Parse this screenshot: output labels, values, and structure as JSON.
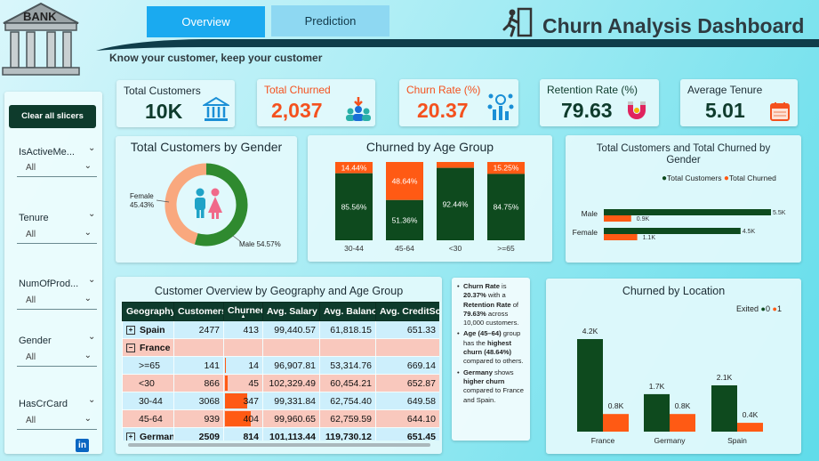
{
  "header": {
    "bank_label": "BANK",
    "tabs": [
      {
        "label": "Overview"
      },
      {
        "label": "Prediction"
      }
    ],
    "title": "Churn Analysis Dashboard",
    "subtitle": "Know your customer, keep your customer"
  },
  "sidebar": {
    "clear_label": "Clear all slicers",
    "slicers": [
      {
        "label": "IsActiveMe...",
        "value": "All"
      },
      {
        "label": "Tenure",
        "value": "All"
      },
      {
        "label": "NumOfProd...",
        "value": "All"
      },
      {
        "label": "Gender",
        "value": "All"
      },
      {
        "label": "HasCrCard",
        "value": "All"
      }
    ],
    "linkedin": "in"
  },
  "kpis": {
    "total_customers": {
      "label": "Total Customers",
      "value": "10K"
    },
    "total_churned": {
      "label": "Total Churned",
      "value": "2,037"
    },
    "churn_rate": {
      "label": "Churn Rate (%)",
      "value": "20.37"
    },
    "retention_rate": {
      "label": "Retention Rate (%)",
      "value": "79.63"
    },
    "average_tenure": {
      "label": "Average Tenure",
      "value": "5.01"
    }
  },
  "colors": {
    "dark_green": "#0e4a1e",
    "orange": "#ff5a14",
    "green_ring": "#2f8a2f",
    "peach_ring": "#f9a87e"
  },
  "chart_data": [
    {
      "type": "pie",
      "title": "Total Customers by Gender",
      "slices": [
        {
          "name": "Female",
          "value": 45.43,
          "label": "45.43%"
        },
        {
          "name": "Male",
          "value": 54.57,
          "label": "54.57%"
        }
      ],
      "labels": {
        "female": "Female",
        "female_pct": "45.43%",
        "male": "Male 54.57%"
      }
    },
    {
      "type": "bar",
      "stacked": true,
      "title": "Churned by Age Group",
      "categories": [
        "30-44",
        "45-64",
        "<30",
        ">=65"
      ],
      "series": [
        {
          "name": "Churned",
          "values": [
            14.44,
            48.64,
            7.56,
            15.25
          ],
          "labels": [
            "14.44%",
            "48.64%",
            "",
            "15.25%"
          ]
        },
        {
          "name": "Not churned",
          "values": [
            85.56,
            51.36,
            92.44,
            84.75
          ],
          "labels": [
            "85.56%",
            "51.36%",
            "92.44%",
            "84.75%"
          ]
        }
      ]
    },
    {
      "type": "bar",
      "orientation": "horizontal",
      "title": "Total Customers and Total Churned by Gender",
      "categories": [
        "Male",
        "Female"
      ],
      "legend": [
        "Total Customers",
        "Total Churned"
      ],
      "series": [
        {
          "name": "Total Customers",
          "values": [
            5.5,
            4.5
          ],
          "labels": [
            "5.5K",
            "4.5K"
          ]
        },
        {
          "name": "Total Churned",
          "values": [
            0.9,
            1.1
          ],
          "labels": [
            "0.9K",
            "1.1K"
          ]
        }
      ],
      "xlim": [
        0,
        5.5
      ]
    },
    {
      "type": "bar",
      "title": "Churned by Location",
      "categories": [
        "France",
        "Germany",
        "Spain"
      ],
      "legend_title": "Exited",
      "legend": [
        "0",
        "1"
      ],
      "series": [
        {
          "name": "0",
          "values": [
            4.2,
            1.7,
            2.1
          ],
          "labels": [
            "4.2K",
            "1.7K",
            "2.1K"
          ]
        },
        {
          "name": "1",
          "values": [
            0.8,
            0.8,
            0.4
          ],
          "labels": [
            "0.8K",
            "0.8K",
            "0.4K"
          ]
        }
      ],
      "ylim": [
        0,
        4.2
      ]
    }
  ],
  "geo_table": {
    "title": "Customer Overview by Geography and Age Group",
    "headers": [
      "Geography",
      "Customers",
      "Churned",
      "Avg. Salary",
      "Avg. Balance",
      "Avg. CreditScore"
    ],
    "rows": [
      {
        "name": "Spain",
        "toggle": "+",
        "customers": "2477",
        "churned": "413",
        "salary": "99,440.57",
        "balance": "61,818.15",
        "credit": "651.33",
        "churned_val": 413
      },
      {
        "name": "France",
        "toggle": "−",
        "customers": "",
        "churned": "",
        "salary": "",
        "balance": "",
        "credit": "",
        "churned_val": 0
      },
      {
        "name": ">=65",
        "toggle": "",
        "customers": "141",
        "churned": "14",
        "salary": "96,907.81",
        "balance": "53,314.76",
        "credit": "669.14",
        "churned_val": 14
      },
      {
        "name": "<30",
        "toggle": "",
        "customers": "866",
        "churned": "45",
        "salary": "102,329.49",
        "balance": "60,454.21",
        "credit": "652.87",
        "churned_val": 45
      },
      {
        "name": "30-44",
        "toggle": "",
        "customers": "3068",
        "churned": "347",
        "salary": "99,331.84",
        "balance": "62,754.40",
        "credit": "649.58",
        "churned_val": 347
      },
      {
        "name": "45-64",
        "toggle": "",
        "customers": "939",
        "churned": "404",
        "salary": "99,960.65",
        "balance": "62,759.59",
        "credit": "644.10",
        "churned_val": 404
      },
      {
        "name": "German",
        "toggle": "+",
        "customers": "2509",
        "churned": "814",
        "salary": "101,113.44",
        "balance": "119,730.12",
        "credit": "651.45",
        "churned_val": 814
      }
    ]
  },
  "insights": [
    {
      "parts": [
        {
          "b": "Churn Rate"
        },
        {
          "t": " is "
        },
        {
          "b": "20.37%"
        },
        {
          "t": " with a "
        },
        {
          "b": "Retention Rate"
        },
        {
          "t": " of "
        },
        {
          "b": "79.63%"
        },
        {
          "t": " across 10,000 customers."
        }
      ]
    },
    {
      "parts": [
        {
          "b": "Age (45–64)"
        },
        {
          "t": " group has the "
        },
        {
          "b": "highest churn (48.64%)"
        },
        {
          "t": " compared to others."
        }
      ]
    },
    {
      "parts": [
        {
          "b": "Germany"
        },
        {
          "t": " shows "
        },
        {
          "b": "higher churn"
        },
        {
          "t": " compared to France and Spain."
        }
      ]
    }
  ]
}
